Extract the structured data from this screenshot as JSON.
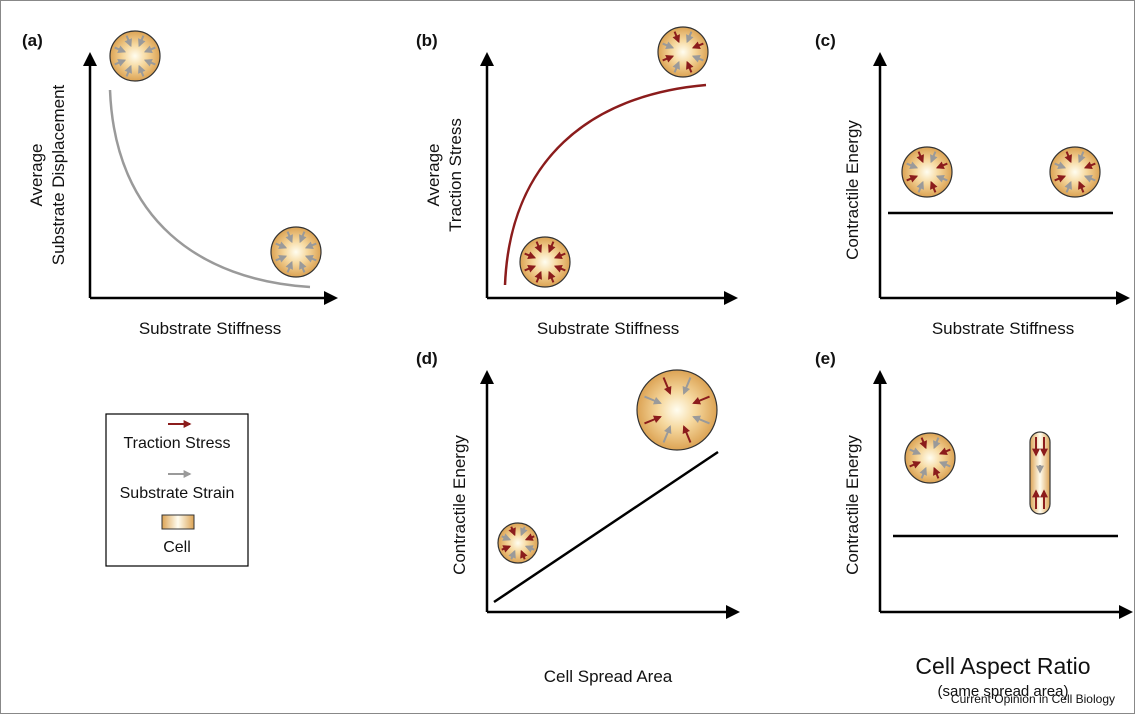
{
  "panels": [
    {
      "label": "(a)",
      "y_label": [
        "Average",
        "Substrate Displacement"
      ],
      "x_label": "Substrate Stiffness"
    },
    {
      "label": "(b)",
      "y_label": [
        "Average",
        "Traction Stress"
      ],
      "x_label": "Substrate Stiffness"
    },
    {
      "label": "(c)",
      "y_label": [
        "Contractile Energy"
      ],
      "x_label": "Substrate Stiffness"
    },
    {
      "label": "(d)",
      "y_label": [
        "Contractile Energy"
      ],
      "x_label": "Cell Spread Area"
    },
    {
      "label": "(e)",
      "y_label": [
        "Contractile Energy"
      ],
      "x_label": "Cell Aspect Ratio",
      "x_sublabel": "(same spread area)"
    }
  ],
  "legend": {
    "items": [
      "Traction Stress",
      "Substrate Strain",
      "Cell"
    ]
  },
  "footer": "Current Opinion in Cell Biology"
}
